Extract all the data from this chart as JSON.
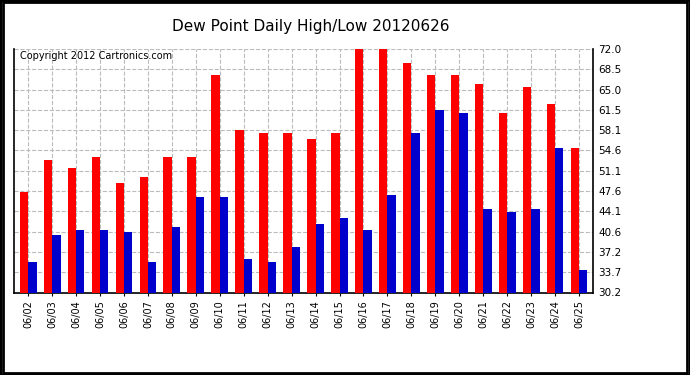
{
  "title": "Dew Point Daily High/Low 20120626",
  "copyright": "Copyright 2012 Cartronics.com",
  "dates": [
    "06/02",
    "06/03",
    "06/04",
    "06/05",
    "06/06",
    "06/07",
    "06/08",
    "06/09",
    "06/10",
    "06/11",
    "06/12",
    "06/13",
    "06/14",
    "06/15",
    "06/16",
    "06/17",
    "06/18",
    "06/19",
    "06/20",
    "06/21",
    "06/22",
    "06/23",
    "06/24",
    "06/25"
  ],
  "highs": [
    47.5,
    53.0,
    51.5,
    53.5,
    49.0,
    50.0,
    53.5,
    53.5,
    67.5,
    58.0,
    57.5,
    57.5,
    56.5,
    57.5,
    72.0,
    72.0,
    69.5,
    67.5,
    67.5,
    66.0,
    61.0,
    65.5,
    62.5,
    55.0
  ],
  "lows": [
    35.5,
    40.0,
    41.0,
    41.0,
    40.5,
    35.5,
    41.5,
    46.5,
    46.5,
    36.0,
    35.5,
    38.0,
    42.0,
    43.0,
    41.0,
    47.0,
    57.5,
    61.5,
    61.0,
    44.5,
    44.0,
    44.5,
    55.0,
    34.0
  ],
  "bar_color_high": "#ff0000",
  "bar_color_low": "#0000cc",
  "bg_color": "#ffffff",
  "grid_color": "#bbbbbb",
  "yticks": [
    30.2,
    33.7,
    37.2,
    40.6,
    44.1,
    47.6,
    51.1,
    54.6,
    58.1,
    61.5,
    65.0,
    68.5,
    72.0
  ],
  "ymin": 30.2,
  "ymax": 72.0,
  "title_fontsize": 11,
  "copyright_fontsize": 7,
  "bar_width": 0.35
}
